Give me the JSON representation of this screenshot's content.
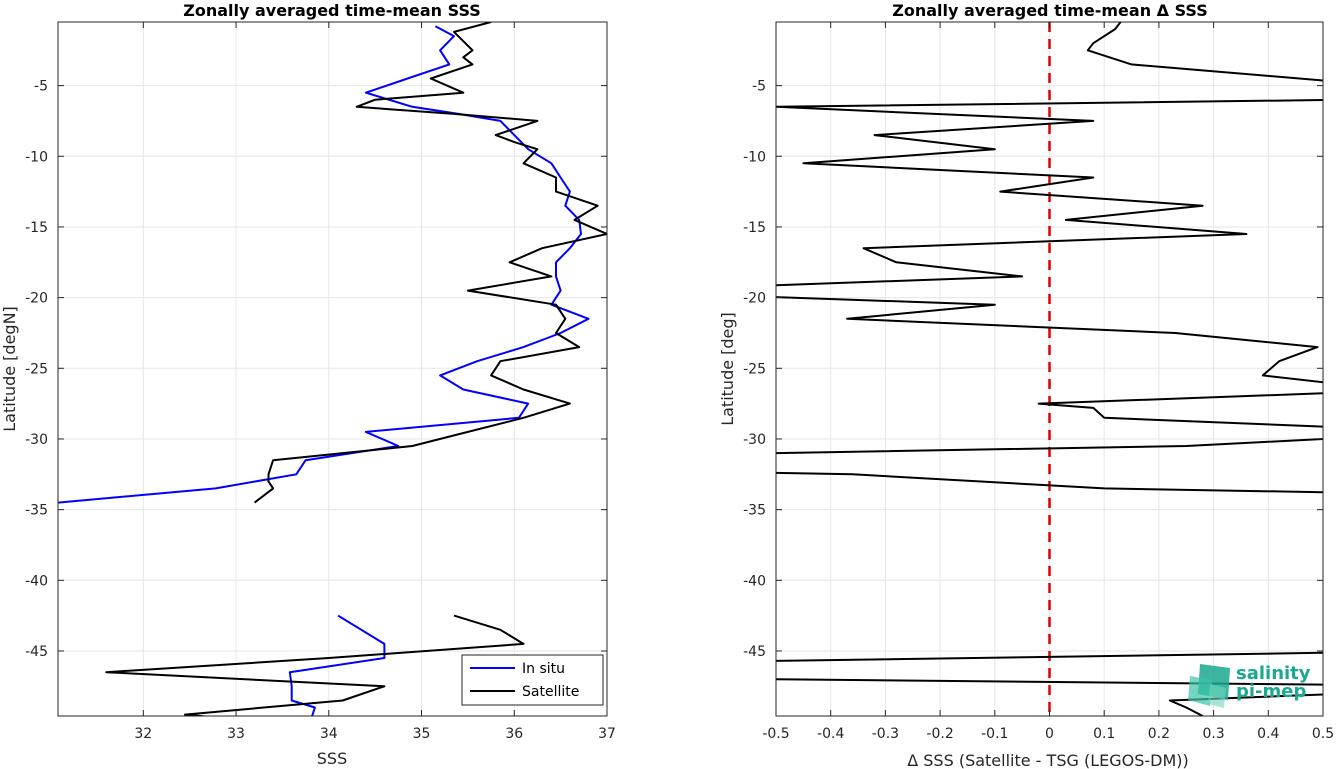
{
  "chart_data": [
    {
      "type": "line",
      "title": "Zonally averaged time-mean SSS",
      "xlabel": "SSS",
      "ylabel": "Latitude [degN]",
      "xlim": [
        31.08,
        37.0
      ],
      "ylim": [
        -49.6,
        -0.5
      ],
      "xticks": [
        32,
        33,
        34,
        35,
        36,
        37
      ],
      "yticks": [
        -5,
        -10,
        -15,
        -20,
        -25,
        -30,
        -35,
        -40,
        -45
      ],
      "grid": true,
      "legend": "bottom-right",
      "series": [
        {
          "name": "In situ",
          "color": "#0000ff",
          "segments": [
            [
              [
                35.15,
                -0.8
              ],
              [
                35.35,
                -1.5
              ],
              [
                35.2,
                -2.5
              ],
              [
                35.3,
                -3.5
              ],
              [
                34.85,
                -4.5
              ],
              [
                34.4,
                -5.5
              ],
              [
                34.9,
                -6.5
              ],
              [
                35.4,
                -7
              ],
              [
                35.85,
                -7.5
              ],
              [
                36.0,
                -8.5
              ],
              [
                36.15,
                -9.5
              ],
              [
                36.4,
                -10.5
              ],
              [
                36.5,
                -11.5
              ],
              [
                36.6,
                -12.5
              ],
              [
                36.55,
                -13.5
              ],
              [
                36.7,
                -14.5
              ],
              [
                36.72,
                -15.5
              ],
              [
                36.6,
                -16.5
              ],
              [
                36.45,
                -17.5
              ],
              [
                36.45,
                -18.5
              ],
              [
                36.5,
                -19.5
              ],
              [
                36.4,
                -20.5
              ],
              [
                36.8,
                -21.5
              ],
              [
                36.5,
                -22.5
              ],
              [
                36.1,
                -23.5
              ],
              [
                35.6,
                -24.5
              ],
              [
                35.2,
                -25.5
              ],
              [
                35.45,
                -26.5
              ],
              [
                36.15,
                -27.5
              ],
              [
                36.05,
                -28.5
              ],
              [
                34.4,
                -29.5
              ],
              [
                34.75,
                -30.5
              ],
              [
                33.75,
                -31.5
              ],
              [
                33.65,
                -32.5
              ],
              [
                32.78,
                -33.5
              ],
              [
                31.08,
                -34.5
              ]
            ],
            [
              [
                34.1,
                -42.5
              ],
              [
                34.6,
                -44.5
              ],
              [
                34.6,
                -45.5
              ],
              [
                33.58,
                -46.5
              ],
              [
                33.6,
                -47.5
              ],
              [
                33.6,
                -48.5
              ],
              [
                33.85,
                -49.0
              ],
              [
                33.82,
                -49.6
              ]
            ]
          ]
        },
        {
          "name": "Satellite",
          "color": "#000000",
          "segments": [
            [
              [
                35.75,
                -0.5
              ],
              [
                35.35,
                -1.2
              ],
              [
                35.55,
                -2.5
              ],
              [
                35.45,
                -3
              ],
              [
                35.55,
                -3.5
              ],
              [
                35.1,
                -4.5
              ],
              [
                35.45,
                -5.5
              ],
              [
                34.5,
                -6.0
              ],
              [
                34.3,
                -6.5
              ],
              [
                35.35,
                -7.0
              ],
              [
                36.25,
                -7.5
              ],
              [
                35.8,
                -8.5
              ],
              [
                36.0,
                -9.0
              ],
              [
                36.25,
                -9.5
              ],
              [
                36.1,
                -10.5
              ],
              [
                36.45,
                -11.5
              ],
              [
                36.45,
                -12.5
              ],
              [
                36.9,
                -13.5
              ],
              [
                36.65,
                -14.5
              ],
              [
                37.0,
                -15.5
              ],
              [
                36.3,
                -16.5
              ],
              [
                35.95,
                -17.5
              ],
              [
                36.4,
                -18.5
              ],
              [
                35.5,
                -19.5
              ],
              [
                36.45,
                -20.5
              ],
              [
                36.55,
                -21.5
              ],
              [
                36.45,
                -22.5
              ],
              [
                36.7,
                -23.5
              ],
              [
                35.85,
                -24.5
              ],
              [
                35.75,
                -25.5
              ],
              [
                36.1,
                -26.5
              ],
              [
                36.6,
                -27.5
              ],
              [
                36.1,
                -28.5
              ],
              [
                35.5,
                -29.5
              ],
              [
                34.9,
                -30.5
              ],
              [
                33.4,
                -31.5
              ],
              [
                33.35,
                -32.5
              ],
              [
                33.35,
                -33.0
              ],
              [
                33.4,
                -33.5
              ],
              [
                33.2,
                -34.5
              ]
            ],
            [
              [
                35.35,
                -42.5
              ],
              [
                35.85,
                -43.5
              ],
              [
                36.1,
                -44.5
              ],
              [
                34.0,
                -45.5
              ],
              [
                31.6,
                -46.5
              ],
              [
                34.6,
                -47.5
              ],
              [
                34.15,
                -48.5
              ],
              [
                32.45,
                -49.5
              ],
              [
                32.78,
                -49.7
              ]
            ]
          ]
        }
      ]
    },
    {
      "type": "line",
      "title": "Zonally averaged time-mean Δ SSS",
      "xlabel": "Δ SSS (Satellite - TSG (LEGOS-DM))",
      "ylabel": "Latitude [deg]",
      "xlim": [
        -0.5,
        0.5
      ],
      "ylim": [
        -49.6,
        -0.5
      ],
      "xticks": [
        -0.5,
        -0.4,
        -0.3,
        -0.2,
        -0.1,
        0,
        0.1,
        0.2,
        0.3,
        0.4,
        0.5
      ],
      "xticklabels": [
        "-0.5",
        "-0.4",
        "-0.3",
        "-0.2",
        "-0.1",
        "0",
        "0.1",
        "0.2",
        "0.3",
        "0.4",
        "0.5"
      ],
      "yticks": [
        -5,
        -10,
        -15,
        -20,
        -25,
        -30,
        -35,
        -40,
        -45
      ],
      "grid": true,
      "reference_line": {
        "x": 0,
        "color": "#e00000",
        "style": "dashed"
      },
      "series": [
        {
          "color": "#000000",
          "segments": [
            [
              [
                0.13,
                -0.5
              ],
              [
                0.12,
                -1.0
              ],
              [
                0.08,
                -2.0
              ],
              [
                0.07,
                -2.5
              ],
              [
                0.15,
                -3.5
              ],
              [
                0.55,
                -4.8
              ]
            ],
            [
              [
                0.55,
                -6.0
              ],
              [
                -0.5,
                -6.5
              ],
              [
                0.08,
                -7.5
              ],
              [
                -0.32,
                -8.5
              ],
              [
                -0.1,
                -9.5
              ],
              [
                -0.45,
                -10.5
              ],
              [
                0.08,
                -11.5
              ],
              [
                -0.09,
                -12.5
              ],
              [
                0.28,
                -13.5
              ],
              [
                0.03,
                -14.5
              ],
              [
                0.36,
                -15.5
              ],
              [
                -0.34,
                -16.5
              ],
              [
                -0.28,
                -17.5
              ],
              [
                -0.05,
                -18.5
              ],
              [
                -0.55,
                -19.2
              ]
            ],
            [
              [
                -0.55,
                -19.9
              ],
              [
                -0.1,
                -20.5
              ],
              [
                -0.37,
                -21.5
              ],
              [
                0.23,
                -22.5
              ],
              [
                0.49,
                -23.5
              ],
              [
                0.42,
                -24.5
              ],
              [
                0.39,
                -25.5
              ],
              [
                0.55,
                -26.2
              ]
            ],
            [
              [
                0.55,
                -26.7
              ],
              [
                -0.02,
                -27.5
              ],
              [
                0.08,
                -27.8
              ],
              [
                0.1,
                -28.5
              ],
              [
                0.55,
                -29.2
              ]
            ],
            [
              [
                0.55,
                -29.9
              ],
              [
                0.25,
                -30.5
              ],
              [
                -0.5,
                -31.0
              ]
            ],
            [
              [
                -0.5,
                -32.4
              ],
              [
                -0.36,
                -32.5
              ],
              [
                0.1,
                -33.5
              ],
              [
                0.55,
                -33.8
              ]
            ],
            [
              [
                0.55,
                -45.1
              ],
              [
                -0.5,
                -45.7
              ]
            ],
            [
              [
                -0.5,
                -47.0
              ],
              [
                0.55,
                -47.4
              ]
            ],
            [
              [
                0.55,
                -48.0
              ],
              [
                0.22,
                -48.5
              ],
              [
                0.25,
                -49.0
              ],
              [
                0.28,
                -49.6
              ]
            ]
          ]
        }
      ]
    }
  ],
  "legend": {
    "items": [
      {
        "label": "In situ",
        "color": "#0000ff"
      },
      {
        "label": "Satellite",
        "color": "#000000"
      }
    ]
  },
  "logo": {
    "line1": "salinity",
    "line2": "pi-mep",
    "color": "#1aa98f"
  }
}
